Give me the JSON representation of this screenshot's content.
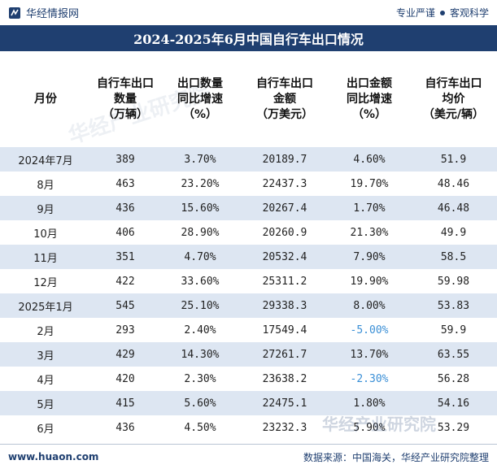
{
  "brand": {
    "name": "华经情报网"
  },
  "slogan": {
    "left": "专业严谨",
    "right": "客观科学"
  },
  "title": "2024-2025年6月中国自行车出口情况",
  "table": {
    "headers": [
      [
        "月份"
      ],
      [
        "自行车出口",
        "数量",
        "（万辆）"
      ],
      [
        "出口数量",
        "同比增速",
        "（%）"
      ],
      [
        "自行车出口",
        "金额",
        "（万美元）"
      ],
      [
        "出口金额",
        "同比增速",
        "（%）"
      ],
      [
        "自行车出口",
        "均价",
        "（美元/辆）"
      ]
    ],
    "rows": [
      [
        "2024年7月",
        "389",
        "3.70%",
        "20189.7",
        "4.60%",
        "51.9"
      ],
      [
        "8月",
        "463",
        "23.20%",
        "22437.3",
        "19.70%",
        "48.46"
      ],
      [
        "9月",
        "436",
        "15.60%",
        "20267.4",
        "1.70%",
        "46.48"
      ],
      [
        "10月",
        "406",
        "28.90%",
        "20260.9",
        "21.30%",
        "49.9"
      ],
      [
        "11月",
        "351",
        "4.70%",
        "20532.4",
        "7.90%",
        "58.5"
      ],
      [
        "12月",
        "422",
        "33.60%",
        "25311.2",
        "19.90%",
        "59.98"
      ],
      [
        "2025年1月",
        "545",
        "25.10%",
        "29338.3",
        "8.00%",
        "53.83"
      ],
      [
        "2月",
        "293",
        "2.40%",
        "17549.4",
        "-5.00%",
        "59.9"
      ],
      [
        "3月",
        "429",
        "14.30%",
        "27261.7",
        "13.70%",
        "63.55"
      ],
      [
        "4月",
        "420",
        "2.30%",
        "23638.2",
        "-2.30%",
        "56.28"
      ],
      [
        "5月",
        "415",
        "5.60%",
        "22475.1",
        "1.80%",
        "54.16"
      ],
      [
        "6月",
        "436",
        "4.50%",
        "23232.3",
        "5.90%",
        "53.29"
      ]
    ]
  },
  "watermark": {
    "text": "华经产业研究院",
    "site": "www.huaon.com"
  },
  "footer": {
    "site": "www.huaon.com",
    "source": "数据来源：中国海关，华经产业研究院整理"
  },
  "colors": {
    "primary": "#1f3f70",
    "stripe": "#dde6f2",
    "negative": "#3a8fd6"
  }
}
